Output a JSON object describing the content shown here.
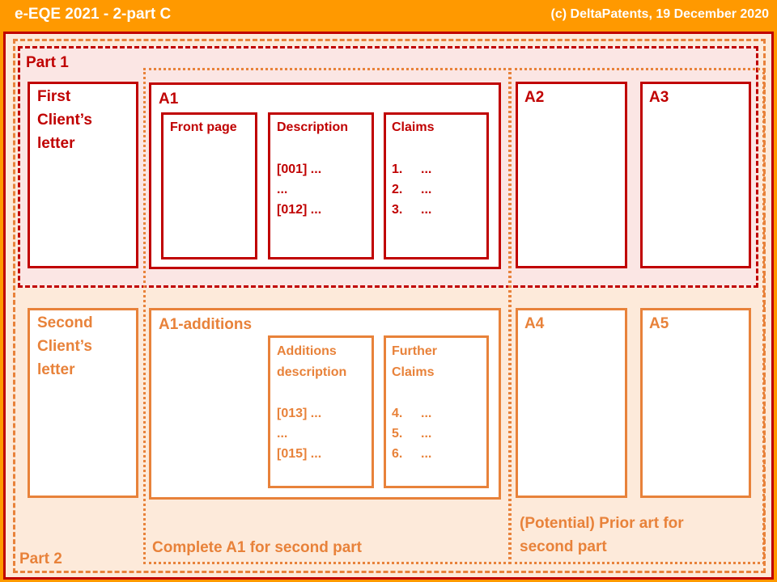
{
  "header": {
    "title": "e-EQE 2021 - 2-part C",
    "copyright": "(c) DeltaPatents, 19 December 2020"
  },
  "part1": {
    "label": "Part 1",
    "client_letter": [
      "First",
      "Client’s",
      "letter"
    ],
    "a1": {
      "label": "A1",
      "front_page": "Front page",
      "description": {
        "title": [
          "Description"
        ],
        "lines": [
          "[001] ...",
          "...",
          "[012] ..."
        ]
      },
      "claims": {
        "title": [
          "Claims"
        ],
        "items": [
          [
            "1.",
            "..."
          ],
          [
            "2.",
            "..."
          ],
          [
            "3.",
            "..."
          ]
        ]
      }
    },
    "a2": "A2",
    "a3": "A3"
  },
  "part2": {
    "label": "Part 2",
    "client_letter": [
      "Second",
      "Client’s",
      "letter"
    ],
    "a1_additions": {
      "label": "A1-additions",
      "description": {
        "title": [
          "Additions",
          "description"
        ],
        "lines": [
          "[013] ...",
          "...",
          "[015] ..."
        ]
      },
      "claims": {
        "title": [
          "Further",
          "Claims"
        ],
        "items": [
          [
            "4.",
            "..."
          ],
          [
            "5.",
            "..."
          ],
          [
            "6.",
            "..."
          ]
        ]
      }
    },
    "a4": "A4",
    "a5": "A5"
  },
  "groups": {
    "complete_a1": "Complete A1 for second part",
    "prior_art": [
      "(Potential) Prior art for",
      "second part"
    ]
  }
}
